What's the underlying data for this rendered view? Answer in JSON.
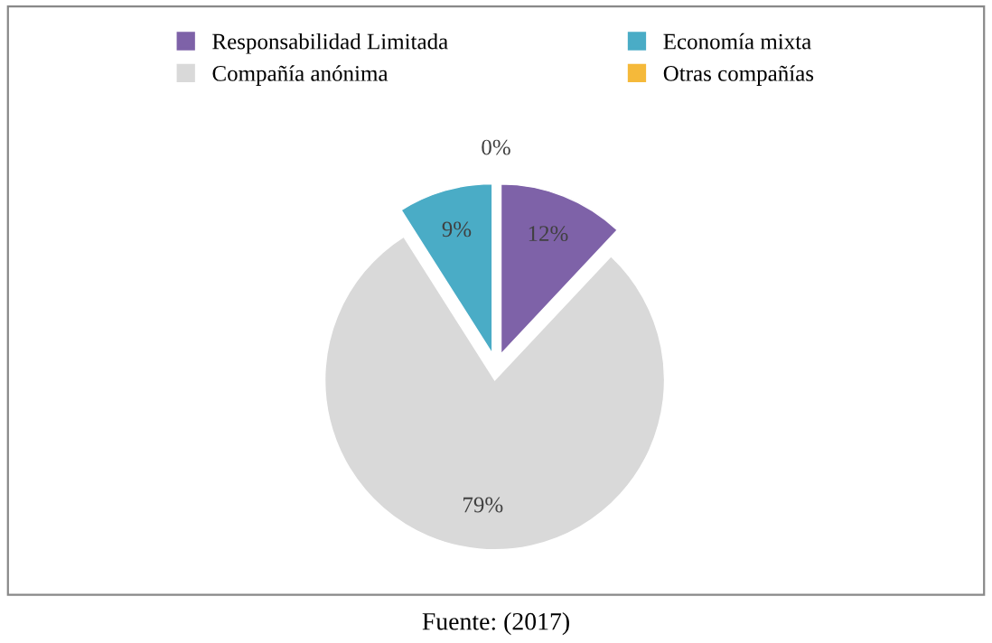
{
  "chart_data": {
    "type": "pie",
    "categories": [
      "Responsabilidad Limitada",
      "Compañía anónima",
      "Economía mixta",
      "Otras compañías"
    ],
    "values": [
      12,
      79,
      9,
      0
    ],
    "colors": [
      "#7e62a8",
      "#d9d9d9",
      "#4aacc6",
      "#f5b93a"
    ],
    "value_labels": [
      "12%",
      "79%",
      "9%",
      "0%"
    ],
    "legend": "top",
    "annotations": [
      "Fuente: (2017)"
    ]
  }
}
